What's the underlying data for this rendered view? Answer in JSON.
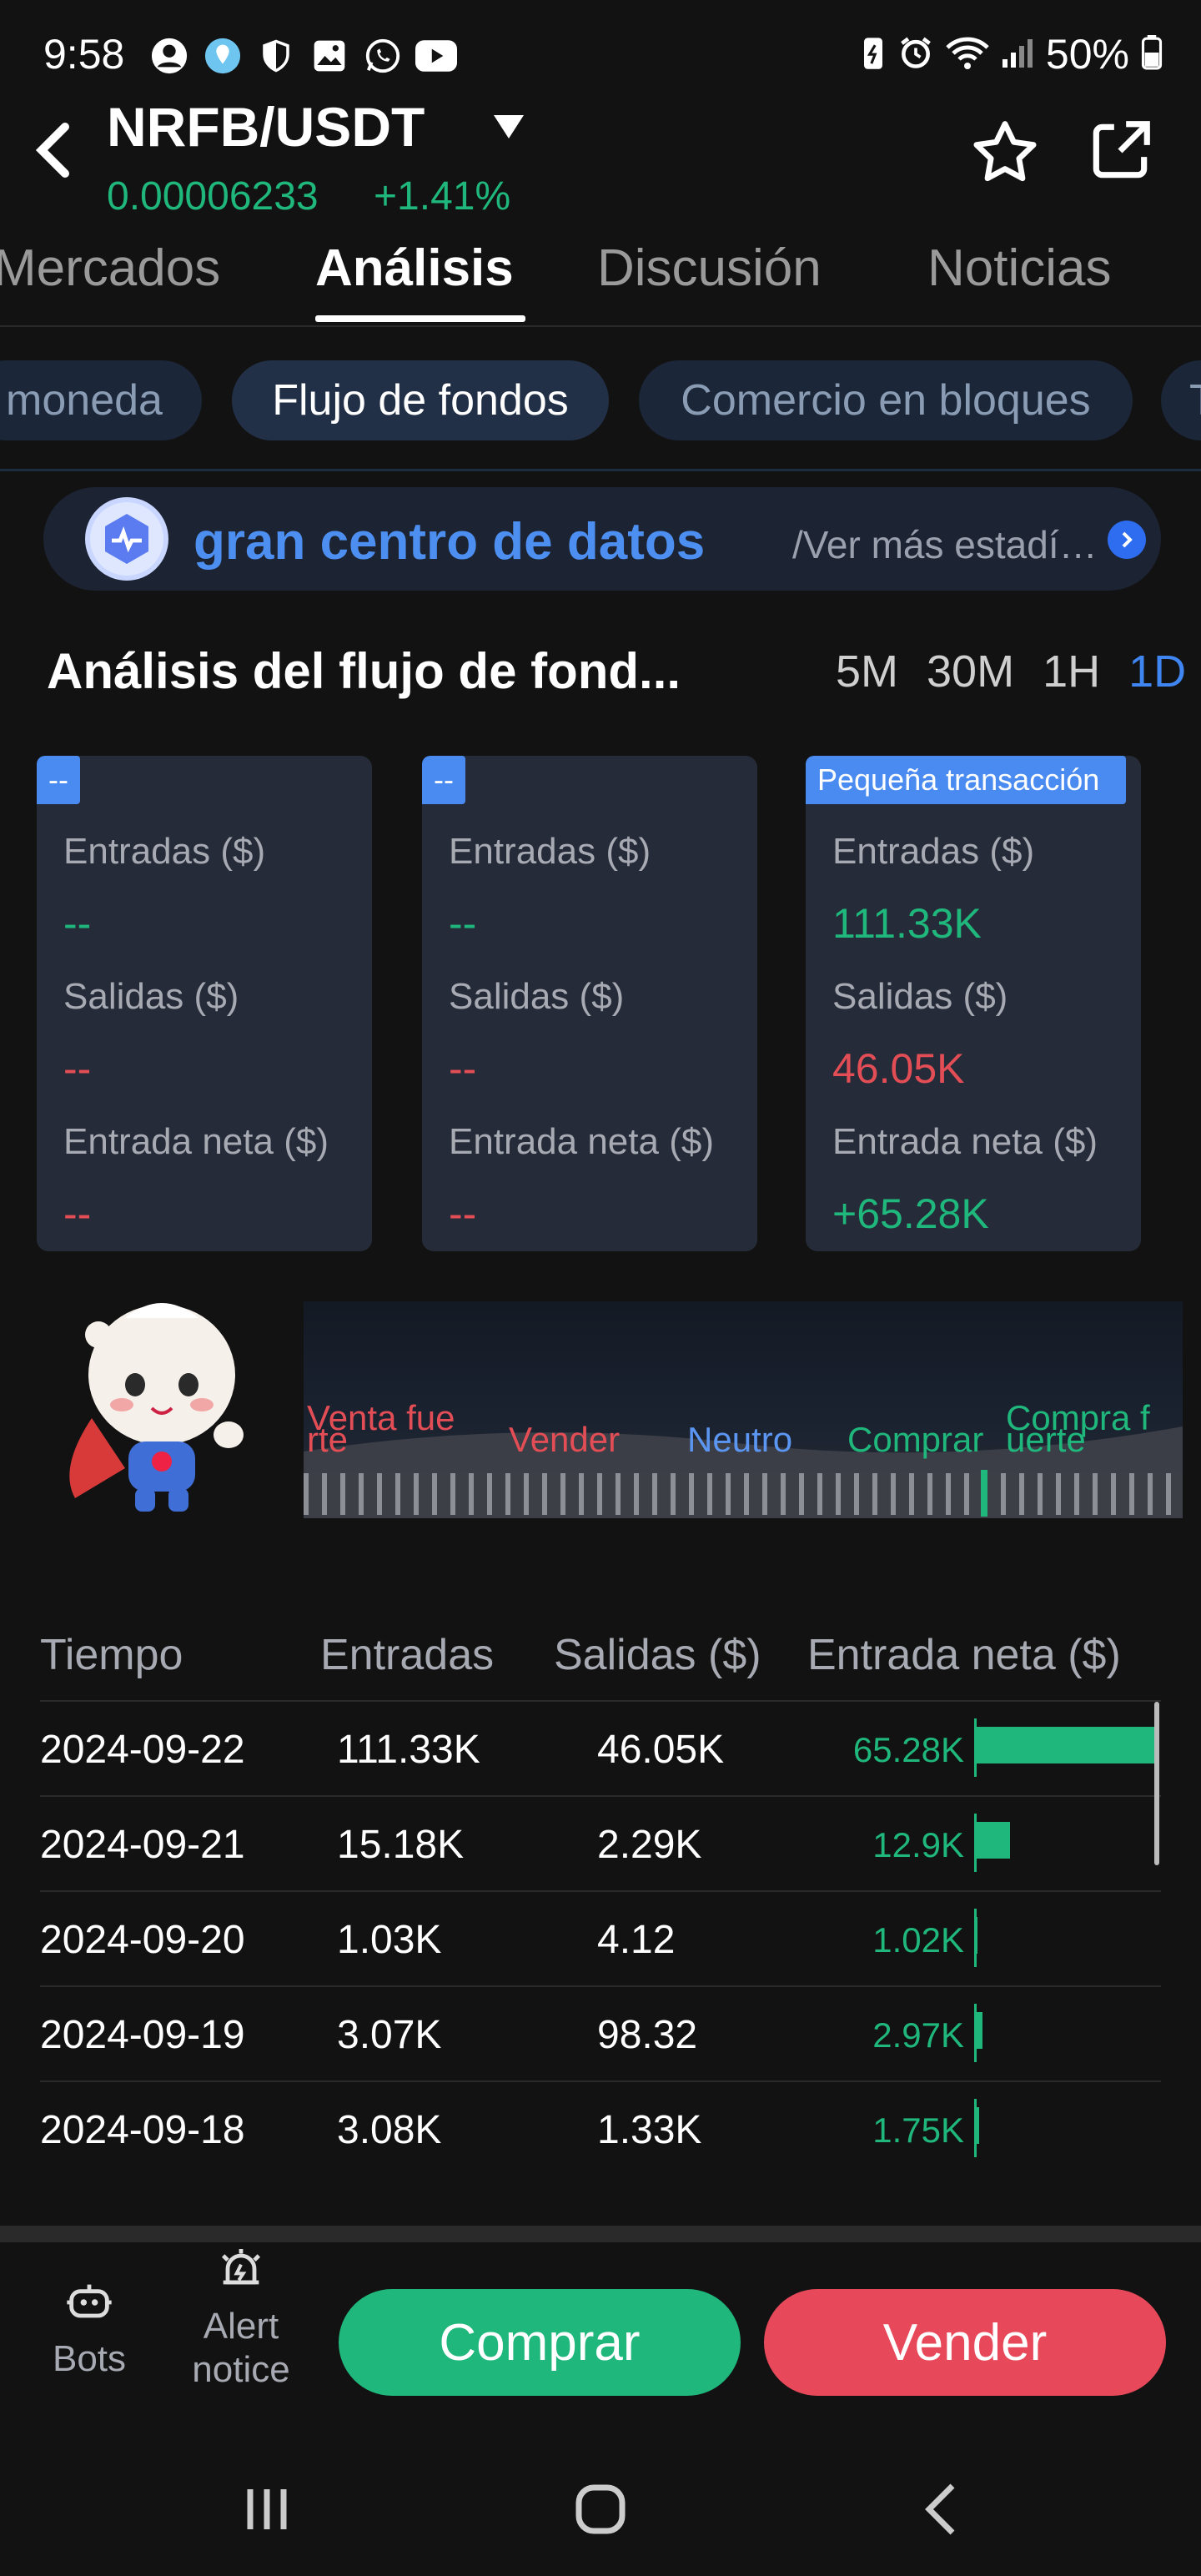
{
  "status_bar": {
    "time": "9:58",
    "battery": "50%"
  },
  "header": {
    "pair": "NRFB/USDT",
    "price": "0.00006233",
    "change": "+1.41%"
  },
  "tabs": [
    {
      "label": "Mercados"
    },
    {
      "label": "Análisis"
    },
    {
      "label": "Discusión"
    },
    {
      "label": "Noticias"
    }
  ],
  "chips": [
    {
      "label": "moneda"
    },
    {
      "label": "Flujo de fondos"
    },
    {
      "label": "Comercio en bloques"
    },
    {
      "label": "T"
    }
  ],
  "banner": {
    "title": "gran centro de datos",
    "subtitle": "/Ver más estadísticas"
  },
  "section": {
    "title": "Análisis del flujo de fond...",
    "periods": [
      "5M",
      "30M",
      "1H",
      "1D"
    ]
  },
  "cards": [
    {
      "badge": "--",
      "inflow_label": "Entradas ($)",
      "inflow": "--",
      "outflow_label": "Salidas ($)",
      "outflow": "--",
      "net_label": "Entrada neta ($)",
      "net": "--"
    },
    {
      "badge": "--",
      "inflow_label": "Entradas ($)",
      "inflow": "--",
      "outflow_label": "Salidas ($)",
      "outflow": "--",
      "net_label": "Entrada neta ($)",
      "net": "--"
    },
    {
      "badge": "Pequeña transacción",
      "inflow_label": "Entradas ($)",
      "inflow": "111.33K",
      "outflow_label": "Salidas ($)",
      "outflow": "46.05K",
      "net_label": "Entrada neta ($)",
      "net": "+65.28K"
    }
  ],
  "sentiment": {
    "labels": {
      "strong_sell_a": "Venta fue",
      "strong_sell_b": "rte",
      "sell": "Vender",
      "neutral": "Neutro",
      "buy": "Comprar",
      "strong_buy_a": "Compra f",
      "strong_buy_b": "uerte"
    },
    "level": 0.77
  },
  "table": {
    "headers": {
      "time": "Tiempo",
      "inflow": "Entradas",
      "outflow": "Salidas ($)",
      "net": "Entrada neta ($)"
    },
    "rows": [
      {
        "time": "2024-09-22",
        "inflow": "111.33K",
        "outflow": "46.05K",
        "net": "65.28K",
        "net_value": 65.28
      },
      {
        "time": "2024-09-21",
        "inflow": "15.18K",
        "outflow": "2.29K",
        "net": "12.9K",
        "net_value": 12.9
      },
      {
        "time": "2024-09-20",
        "inflow": "1.03K",
        "outflow": "4.12",
        "net": "1.02K",
        "net_value": 1.02
      },
      {
        "time": "2024-09-19",
        "inflow": "3.07K",
        "outflow": "98.32",
        "net": "2.97K",
        "net_value": 2.97
      },
      {
        "time": "2024-09-18",
        "inflow": "3.08K",
        "outflow": "1.33K",
        "net": "1.75K",
        "net_value": 1.75
      }
    ]
  },
  "bottom_bar": {
    "bots_label": "Bots",
    "alert_label_1": "Alert",
    "alert_label_2": "notice",
    "buy_label": "Comprar",
    "sell_label": "Vender"
  },
  "colors": {
    "green": "#1fb77c",
    "red": "#e34d55",
    "accent": "#4a8bf2"
  }
}
